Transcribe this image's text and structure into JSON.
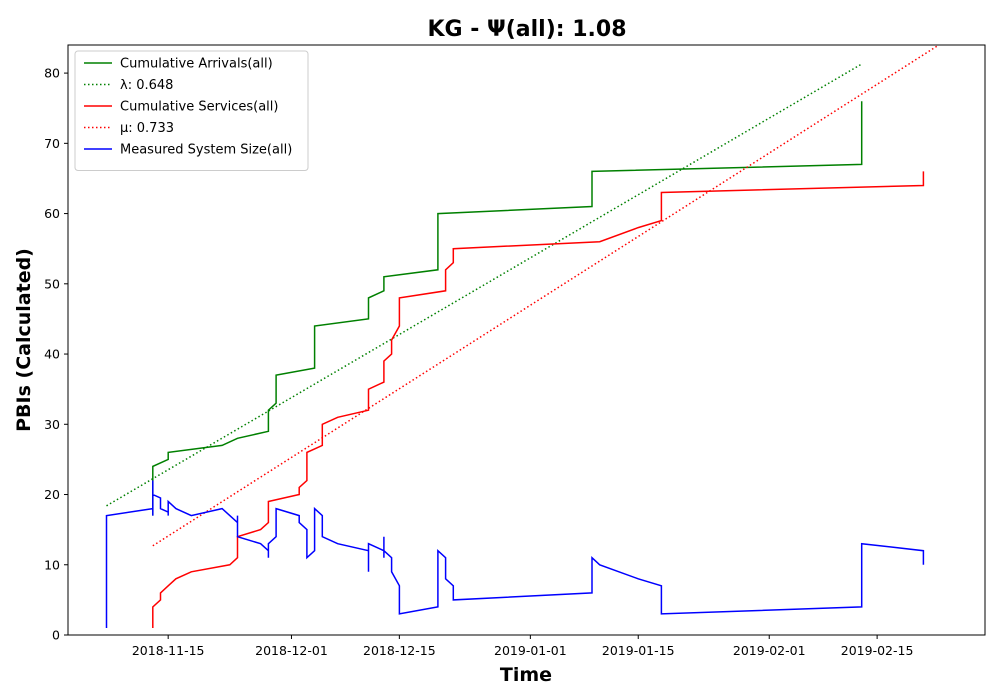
{
  "chart_data": {
    "type": "line",
    "title": "KG -  Ψ(all): 1.08",
    "xlabel": "Time",
    "ylabel": "PBIs (Calculated)",
    "xlim": [
      "2018-11-02",
      "2019-03-01"
    ],
    "ylim": [
      0,
      84
    ],
    "x_ticks": [
      "2018-11-15",
      "2018-12-01",
      "2018-12-15",
      "2019-01-01",
      "2019-01-15",
      "2019-02-01",
      "2019-02-15"
    ],
    "y_ticks": [
      0,
      10,
      20,
      30,
      40,
      50,
      60,
      70,
      80
    ],
    "grid": false,
    "legend_position": "top-left",
    "legend": [
      {
        "label": "Cumulative Arrivals(all)",
        "color": "#008000",
        "style": "solid"
      },
      {
        "label": "λ: 0.648",
        "color": "#008000",
        "style": "dotted"
      },
      {
        "label": "Cumulative Services(all)",
        "color": "#ff0000",
        "style": "solid"
      },
      {
        "label": "μ: 0.733",
        "color": "#ff0000",
        "style": "dotted"
      },
      {
        "label": "Measured System Size(all)",
        "color": "#0000ff",
        "style": "solid"
      }
    ],
    "series": [
      {
        "name": "Cumulative Arrivals(all)",
        "color": "#008000",
        "style": "solid",
        "points": [
          [
            "2018-11-13",
            17
          ],
          [
            "2018-11-13",
            24
          ],
          [
            "2018-11-15",
            25
          ],
          [
            "2018-11-15",
            26
          ],
          [
            "2018-11-22",
            27
          ],
          [
            "2018-11-24",
            28
          ],
          [
            "2018-11-28",
            29
          ],
          [
            "2018-11-28",
            32
          ],
          [
            "2018-11-29",
            33
          ],
          [
            "2018-11-29",
            37
          ],
          [
            "2018-12-04",
            38
          ],
          [
            "2018-12-04",
            44
          ],
          [
            "2018-12-11",
            45
          ],
          [
            "2018-12-11",
            48
          ],
          [
            "2018-12-13",
            49
          ],
          [
            "2018-12-13",
            51
          ],
          [
            "2018-12-20",
            52
          ],
          [
            "2018-12-20",
            60
          ],
          [
            "2019-01-09",
            61
          ],
          [
            "2019-01-09",
            66
          ],
          [
            "2019-02-13",
            67
          ],
          [
            "2019-02-13",
            76
          ]
        ]
      },
      {
        "name": "λ: 0.648",
        "color": "#008000",
        "style": "dotted",
        "points": [
          [
            "2018-11-07",
            18.4
          ],
          [
            "2019-02-13",
            81.3
          ]
        ]
      },
      {
        "name": "Cumulative Services(all)",
        "color": "#ff0000",
        "style": "solid",
        "points": [
          [
            "2018-11-13",
            1
          ],
          [
            "2018-11-13",
            4
          ],
          [
            "2018-11-14",
            5
          ],
          [
            "2018-11-14",
            6
          ],
          [
            "2018-11-15",
            7
          ],
          [
            "2018-11-16",
            8
          ],
          [
            "2018-11-18",
            9
          ],
          [
            "2018-11-23",
            10
          ],
          [
            "2018-11-24",
            11
          ],
          [
            "2018-11-24",
            14
          ],
          [
            "2018-11-27",
            15
          ],
          [
            "2018-11-28",
            16
          ],
          [
            "2018-11-28",
            19
          ],
          [
            "2018-12-02",
            20
          ],
          [
            "2018-12-02",
            21
          ],
          [
            "2018-12-03",
            22
          ],
          [
            "2018-12-03",
            26
          ],
          [
            "2018-12-04",
            26.5
          ],
          [
            "2018-12-05",
            27
          ],
          [
            "2018-12-05",
            30
          ],
          [
            "2018-12-07",
            31
          ],
          [
            "2018-12-11",
            32
          ],
          [
            "2018-12-11",
            35
          ],
          [
            "2018-12-13",
            36
          ],
          [
            "2018-12-13",
            39
          ],
          [
            "2018-12-14",
            40
          ],
          [
            "2018-12-14",
            42
          ],
          [
            "2018-12-15",
            44
          ],
          [
            "2018-12-15",
            48
          ],
          [
            "2018-12-21",
            49
          ],
          [
            "2018-12-21",
            52
          ],
          [
            "2018-12-22",
            53
          ],
          [
            "2018-12-22",
            55
          ],
          [
            "2019-01-10",
            56
          ],
          [
            "2019-01-15",
            58
          ],
          [
            "2019-01-18",
            59
          ],
          [
            "2019-01-18",
            63
          ],
          [
            "2019-02-21",
            64
          ],
          [
            "2019-02-21",
            66
          ]
        ]
      },
      {
        "name": "μ: 0.733",
        "color": "#ff0000",
        "style": "dotted",
        "points": [
          [
            "2018-11-13",
            12.7
          ],
          [
            "2019-02-23",
            84
          ]
        ]
      },
      {
        "name": "Measured System Size(all)",
        "color": "#0000ff",
        "style": "solid",
        "points": [
          [
            "2018-11-07",
            1
          ],
          [
            "2018-11-07",
            17
          ],
          [
            "2018-11-13",
            18
          ],
          [
            "2018-11-13",
            17
          ],
          [
            "2018-11-13",
            22
          ],
          [
            "2018-11-13",
            20
          ],
          [
            "2018-11-14",
            19.5
          ],
          [
            "2018-11-14",
            18
          ],
          [
            "2018-11-15",
            17.5
          ],
          [
            "2018-11-15",
            17
          ],
          [
            "2018-11-15",
            19
          ],
          [
            "2018-11-16",
            18
          ],
          [
            "2018-11-18",
            17
          ],
          [
            "2018-11-22",
            18
          ],
          [
            "2018-11-23",
            17
          ],
          [
            "2018-11-24",
            16
          ],
          [
            "2018-11-24",
            17
          ],
          [
            "2018-11-24",
            14
          ],
          [
            "2018-11-27",
            13
          ],
          [
            "2018-11-28",
            12
          ],
          [
            "2018-11-28",
            11
          ],
          [
            "2018-11-28",
            13
          ],
          [
            "2018-11-29",
            14
          ],
          [
            "2018-11-29",
            18
          ],
          [
            "2018-12-02",
            17
          ],
          [
            "2018-12-02",
            16
          ],
          [
            "2018-12-03",
            15
          ],
          [
            "2018-12-03",
            11
          ],
          [
            "2018-12-04",
            12
          ],
          [
            "2018-12-04",
            18
          ],
          [
            "2018-12-05",
            17
          ],
          [
            "2018-12-05",
            14
          ],
          [
            "2018-12-07",
            13
          ],
          [
            "2018-12-11",
            12
          ],
          [
            "2018-12-11",
            9
          ],
          [
            "2018-12-11",
            13
          ],
          [
            "2018-12-13",
            12
          ],
          [
            "2018-12-13",
            11
          ],
          [
            "2018-12-13",
            14
          ],
          [
            "2018-12-13",
            12
          ],
          [
            "2018-12-14",
            11
          ],
          [
            "2018-12-14",
            9
          ],
          [
            "2018-12-15",
            7
          ],
          [
            "2018-12-15",
            3
          ],
          [
            "2018-12-20",
            4
          ],
          [
            "2018-12-20",
            12
          ],
          [
            "2018-12-21",
            11
          ],
          [
            "2018-12-21",
            8
          ],
          [
            "2018-12-22",
            7
          ],
          [
            "2018-12-22",
            5
          ],
          [
            "2019-01-09",
            6
          ],
          [
            "2019-01-09",
            11
          ],
          [
            "2019-01-10",
            10
          ],
          [
            "2019-01-15",
            8
          ],
          [
            "2019-01-18",
            7
          ],
          [
            "2019-01-18",
            3
          ],
          [
            "2019-02-13",
            4
          ],
          [
            "2019-02-13",
            13
          ],
          [
            "2019-02-21",
            12
          ],
          [
            "2019-02-21",
            10
          ]
        ]
      }
    ]
  }
}
